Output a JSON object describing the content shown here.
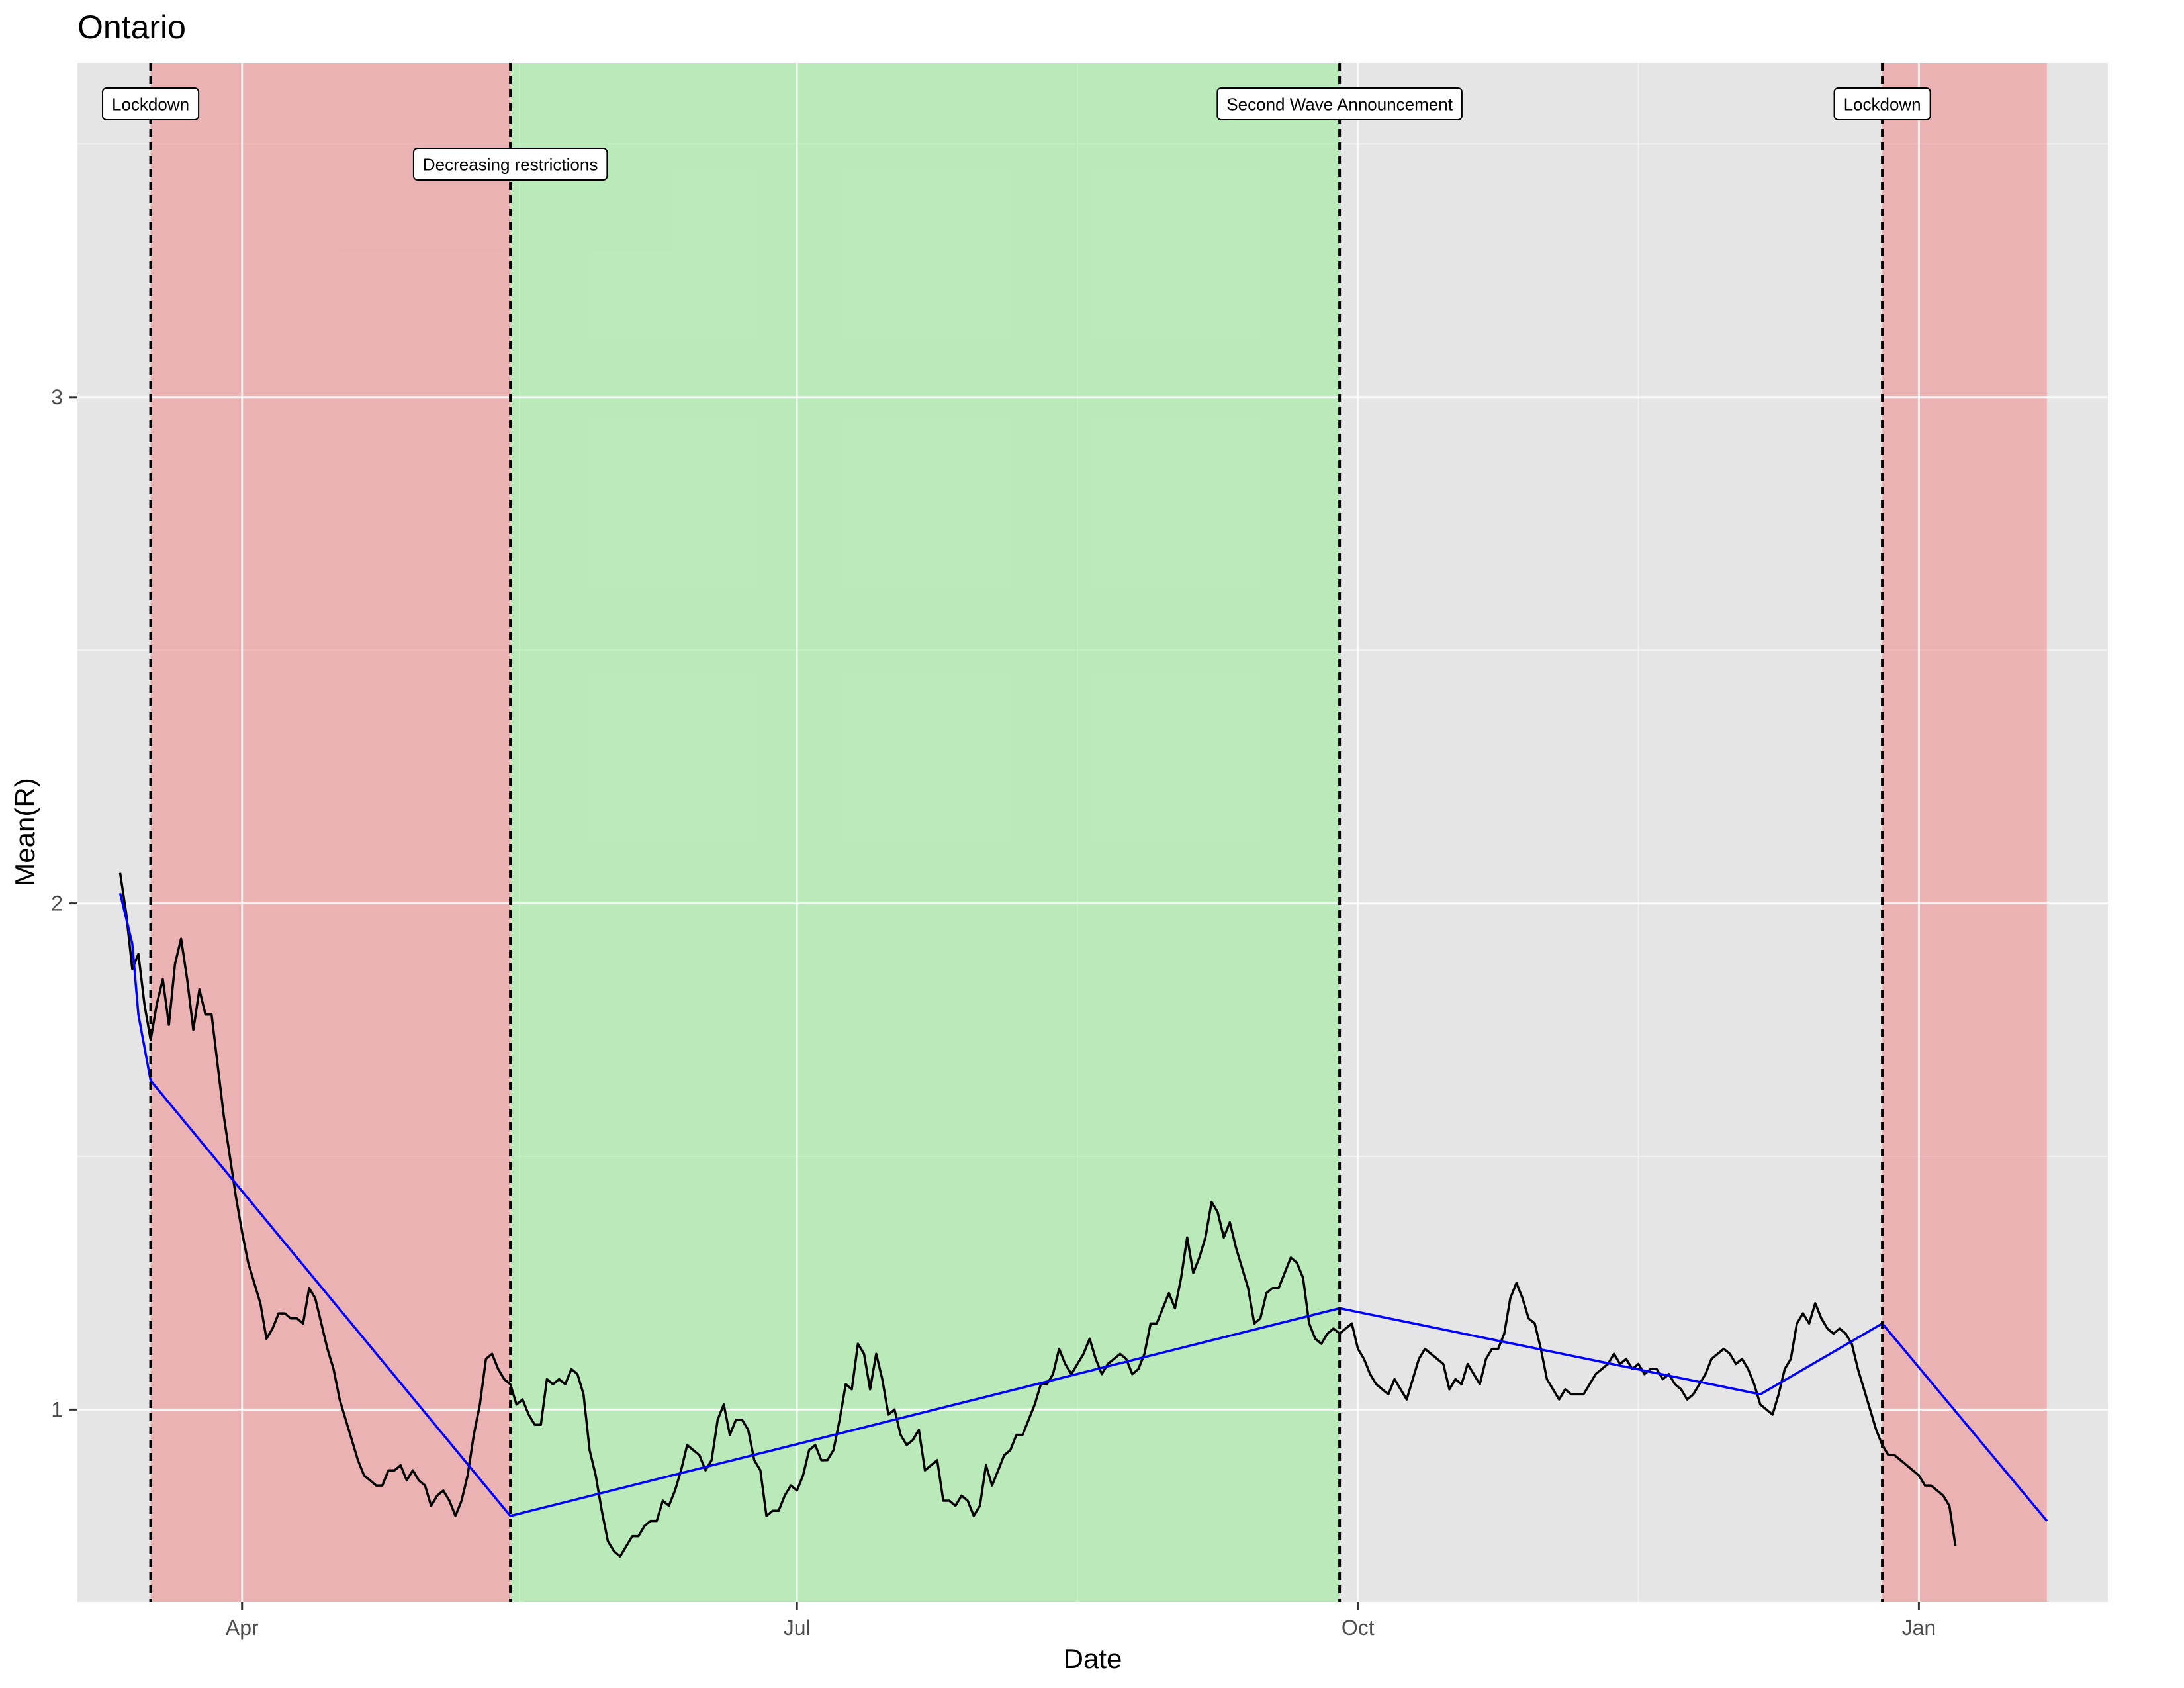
{
  "chart_data": {
    "type": "line",
    "title": "Ontario",
    "xlabel": "Date",
    "ylabel": "Mean(R)",
    "x_axis": {
      "type": "date",
      "range": [
        "2020-03-05",
        "2021-02-01"
      ],
      "ticks": [
        {
          "date": "2020-04-01",
          "label": "Apr"
        },
        {
          "date": "2020-07-01",
          "label": "Jul"
        },
        {
          "date": "2020-10-01",
          "label": "Oct"
        },
        {
          "date": "2021-01-01",
          "label": "Jan"
        }
      ]
    },
    "y_axis": {
      "range": [
        0.62,
        3.66
      ],
      "ticks": [
        1,
        2,
        3
      ]
    },
    "grid": true,
    "background": "#E5E5E5",
    "shaded_regions": [
      {
        "start": "2020-03-17",
        "end": "2020-05-15",
        "color": "#F08080"
      },
      {
        "start": "2020-05-15",
        "end": "2020-09-28",
        "color": "#90EE90"
      },
      {
        "start": "2020-12-26",
        "end": "2021-01-22",
        "color": "#F08080"
      }
    ],
    "events": [
      {
        "date": "2020-03-17",
        "label": "Lockdown",
        "row": 1
      },
      {
        "date": "2020-05-15",
        "label": "Decreasing restrictions",
        "row": 2
      },
      {
        "date": "2020-09-28",
        "label": "Second Wave Announcement",
        "row": 1
      },
      {
        "date": "2020-12-26",
        "label": "Lockdown",
        "row": 1
      }
    ],
    "series": [
      {
        "color": "#000000",
        "start_date": "2020-03-12",
        "values": [
          2.06,
          1.98,
          1.87,
          1.9,
          1.8,
          1.73,
          1.8,
          1.85,
          1.76,
          1.88,
          1.93,
          1.85,
          1.75,
          1.83,
          1.78,
          1.78,
          1.68,
          1.58,
          1.5,
          1.42,
          1.35,
          1.29,
          1.25,
          1.21,
          1.14,
          1.16,
          1.19,
          1.19,
          1.18,
          1.18,
          1.17,
          1.24,
          1.22,
          1.17,
          1.12,
          1.08,
          1.02,
          0.98,
          0.94,
          0.9,
          0.87,
          0.86,
          0.85,
          0.85,
          0.88,
          0.88,
          0.89,
          0.86,
          0.88,
          0.86,
          0.85,
          0.81,
          0.83,
          0.84,
          0.82,
          0.79,
          0.82,
          0.87,
          0.95,
          1.01,
          1.1,
          1.11,
          1.08,
          1.06,
          1.05,
          1.01,
          1.02,
          0.99,
          0.97,
          0.97,
          1.06,
          1.05,
          1.06,
          1.05,
          1.08,
          1.07,
          1.03,
          0.92,
          0.87,
          0.8,
          0.74,
          0.72,
          0.71,
          0.73,
          0.75,
          0.75,
          0.77,
          0.78,
          0.78,
          0.82,
          0.81,
          0.84,
          0.88,
          0.93,
          0.92,
          0.91,
          0.88,
          0.9,
          0.98,
          1.01,
          0.95,
          0.98,
          0.98,
          0.96,
          0.9,
          0.88,
          0.79,
          0.8,
          0.8,
          0.83,
          0.85,
          0.84,
          0.87,
          0.92,
          0.93,
          0.9,
          0.9,
          0.92,
          0.98,
          1.05,
          1.04,
          1.13,
          1.11,
          1.04,
          1.11,
          1.06,
          0.99,
          1.0,
          0.95,
          0.93,
          0.94,
          0.96,
          0.88,
          0.89,
          0.9,
          0.82,
          0.82,
          0.81,
          0.83,
          0.82,
          0.79,
          0.81,
          0.89,
          0.85,
          0.88,
          0.91,
          0.92,
          0.95,
          0.95,
          0.98,
          1.01,
          1.05,
          1.05,
          1.07,
          1.12,
          1.09,
          1.07,
          1.09,
          1.11,
          1.14,
          1.1,
          1.07,
          1.09,
          1.1,
          1.11,
          1.1,
          1.07,
          1.08,
          1.11,
          1.17,
          1.17,
          1.2,
          1.23,
          1.2,
          1.26,
          1.34,
          1.27,
          1.3,
          1.34,
          1.41,
          1.39,
          1.34,
          1.37,
          1.32,
          1.28,
          1.24,
          1.17,
          1.18,
          1.23,
          1.24,
          1.24,
          1.27,
          1.3,
          1.29,
          1.26,
          1.17,
          1.14,
          1.13,
          1.15,
          1.16,
          1.15,
          1.16,
          1.17,
          1.12,
          1.1,
          1.07,
          1.05,
          1.04,
          1.03,
          1.06,
          1.04,
          1.02,
          1.06,
          1.1,
          1.12,
          1.11,
          1.1,
          1.09,
          1.04,
          1.06,
          1.05,
          1.09,
          1.07,
          1.05,
          1.1,
          1.12,
          1.12,
          1.15,
          1.22,
          1.25,
          1.22,
          1.18,
          1.17,
          1.12,
          1.06,
          1.04,
          1.02,
          1.04,
          1.03,
          1.03,
          1.03,
          1.05,
          1.07,
          1.08,
          1.09,
          1.11,
          1.09,
          1.1,
          1.08,
          1.09,
          1.07,
          1.08,
          1.08,
          1.06,
          1.07,
          1.05,
          1.04,
          1.02,
          1.03,
          1.05,
          1.07,
          1.1,
          1.11,
          1.12,
          1.11,
          1.09,
          1.1,
          1.08,
          1.05,
          1.01,
          1.0,
          0.99,
          1.03,
          1.08,
          1.1,
          1.17,
          1.19,
          1.17,
          1.21,
          1.18,
          1.16,
          1.15,
          1.16,
          1.15,
          1.13,
          1.08,
          1.04,
          1.0,
          0.96,
          0.93,
          0.91,
          0.91,
          0.9,
          0.89,
          0.88,
          0.87,
          0.85,
          0.85,
          0.84,
          0.83,
          0.81,
          0.73
        ]
      },
      {
        "color": "#0000FF",
        "points": [
          [
            "2020-03-12",
            2.02
          ],
          [
            "2020-03-14",
            1.92
          ],
          [
            "2020-03-15",
            1.78
          ],
          [
            "2020-03-17",
            1.65
          ],
          [
            "2020-05-15",
            0.79
          ],
          [
            "2020-09-28",
            1.2
          ],
          [
            "2020-12-06",
            1.03
          ],
          [
            "2020-12-26",
            1.17
          ],
          [
            "2021-01-22",
            0.78
          ]
        ]
      }
    ]
  }
}
